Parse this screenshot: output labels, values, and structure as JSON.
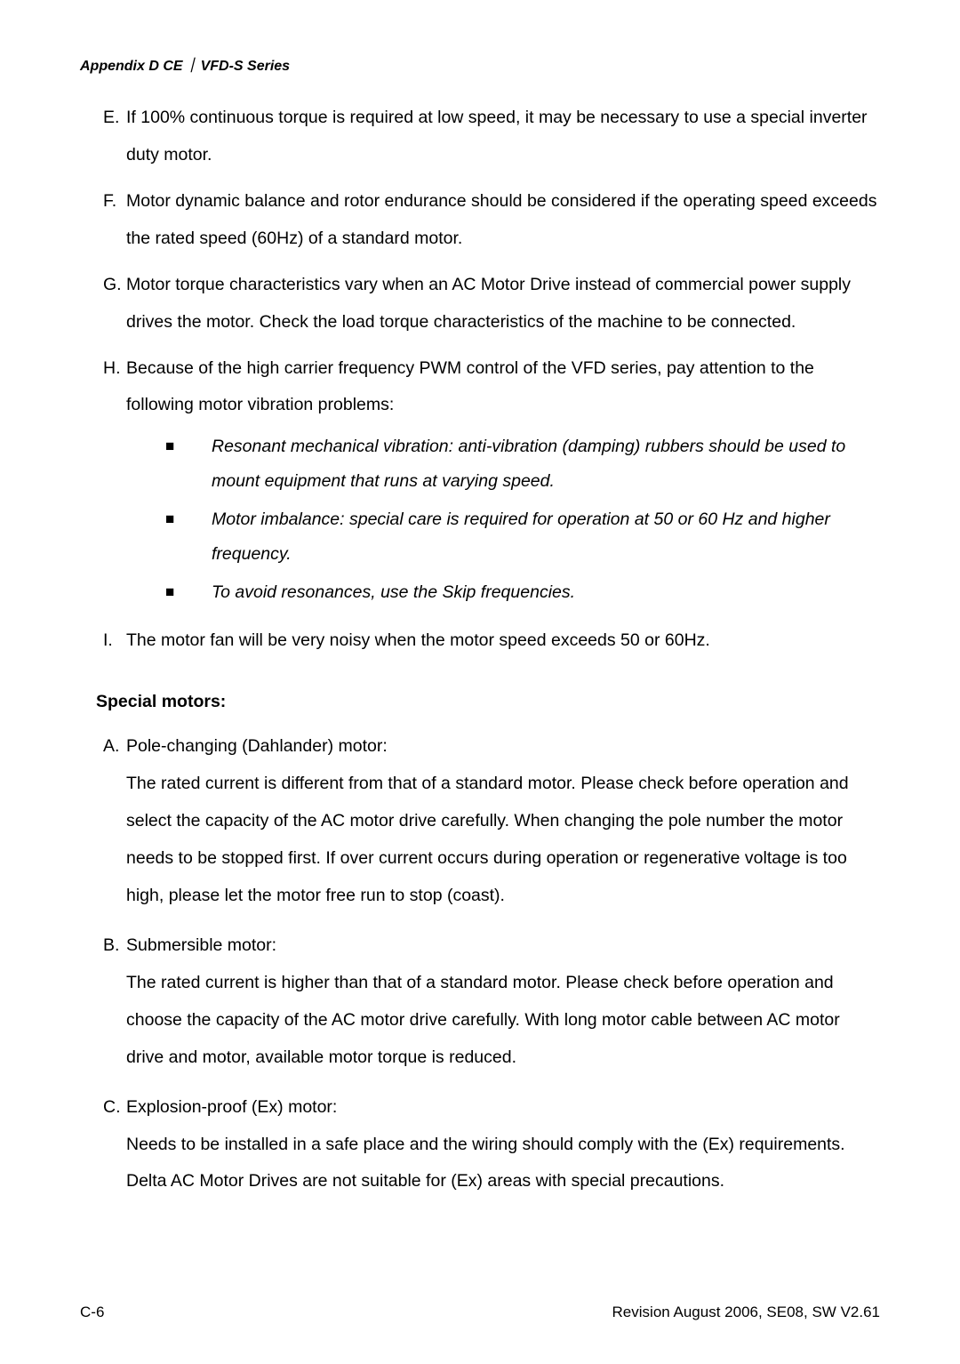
{
  "header": {
    "appendix": "Appendix D CE",
    "separator": "｜",
    "series": "VFD-S Series"
  },
  "mainList": {
    "itemE": {
      "letter": "E.",
      "text": "If 100% continuous torque is required at low speed, it may be necessary to use a special inverter duty motor."
    },
    "itemF": {
      "letter": "F.",
      "text": "Motor dynamic balance and rotor endurance should be considered if the operating speed exceeds the rated speed (60Hz) of a standard motor."
    },
    "itemG": {
      "letter": "G.",
      "text": "Motor torque characteristics vary when an AC Motor Drive instead of commercial power supply drives the motor. Check the load torque characteristics of the machine to be connected."
    },
    "itemH": {
      "letter": "H.",
      "text": "Because of the high carrier frequency PWM control of the VFD series, pay attention to the following motor vibration problems:",
      "sub1": "Resonant mechanical vibration: anti-vibration (damping) rubbers should be used to mount equipment that runs at varying speed.",
      "sub2": "Motor imbalance: special care is required for operation at 50 or 60 Hz and higher frequency.",
      "sub3": "To avoid resonances, use the Skip frequencies."
    },
    "itemI": {
      "letter": "I.",
      "text": "The motor fan will be very noisy when the motor speed exceeds 50 or 60Hz."
    }
  },
  "specialHeading": "Special motors:",
  "specialList": {
    "itemA": {
      "letter": "A.",
      "title": "Pole-changing (Dahlander) motor:",
      "text": "The rated current is different from that of a standard motor. Please check before operation and select the capacity of the AC motor drive carefully. When changing the pole number the motor needs to be stopped first. If over current occurs during operation or regenerative voltage is too high, please let the motor free run to stop (coast)."
    },
    "itemB": {
      "letter": "B.",
      "title": "Submersible motor:",
      "text": "The rated current is higher than that of a standard motor. Please check before operation and choose the capacity of the AC motor drive carefully. With long motor cable between AC motor drive and motor, available motor torque is reduced."
    },
    "itemC": {
      "letter": "C.",
      "title": "Explosion-proof (Ex) motor:",
      "text": "Needs to be installed in a safe place and the wiring should comply with the (Ex) requirements. Delta AC Motor Drives are not suitable for (Ex) areas with special precautions."
    }
  },
  "footer": {
    "pageNumber": "C-6",
    "revision": "Revision August 2006, SE08, SW V2.61"
  },
  "bullet": "■"
}
